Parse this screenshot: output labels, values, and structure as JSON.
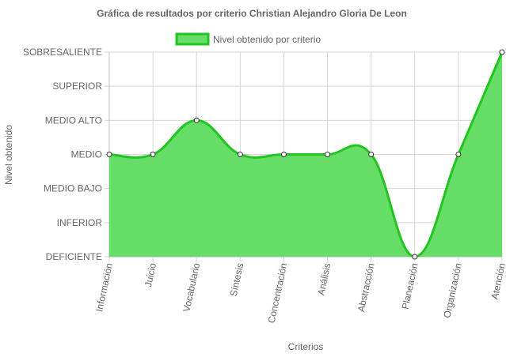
{
  "chart_data": {
    "type": "area",
    "title": "Gráfica de resultados por criterio Christian Alejandro Gloria De Leon",
    "xlabel": "Criterios",
    "ylabel": "Nivel obtenido",
    "categories": [
      "Información",
      "Juicio",
      "Vocabulario",
      "Síntesis",
      "Concentración",
      "Análisis",
      "Abstracción",
      "Planeación",
      "Organización",
      "Atención"
    ],
    "y_levels": [
      "DEFICIENTE",
      "INFERIOR",
      "MEDIO BAJO",
      "MEDIO",
      "MEDIO ALTO",
      "SUPERIOR",
      "SOBRESALIENTE"
    ],
    "series": [
      {
        "name": "Nivel obtenido por criterio",
        "values": [
          "MEDIO",
          "MEDIO",
          "MEDIO ALTO",
          "MEDIO",
          "MEDIO",
          "MEDIO",
          "MEDIO",
          "DEFICIENTE",
          "MEDIO",
          "SOBRESALIENTE"
        ]
      }
    ],
    "grid": true,
    "legend_position": "top-center",
    "colors": {
      "fill": "#66dd66",
      "line": "#22c422",
      "point_fill": "#ffffff",
      "point_stroke": "#333333",
      "grid": "#d6d6d6",
      "axis": "#bbbbbb",
      "text": "#666666",
      "title": "#666666"
    }
  }
}
